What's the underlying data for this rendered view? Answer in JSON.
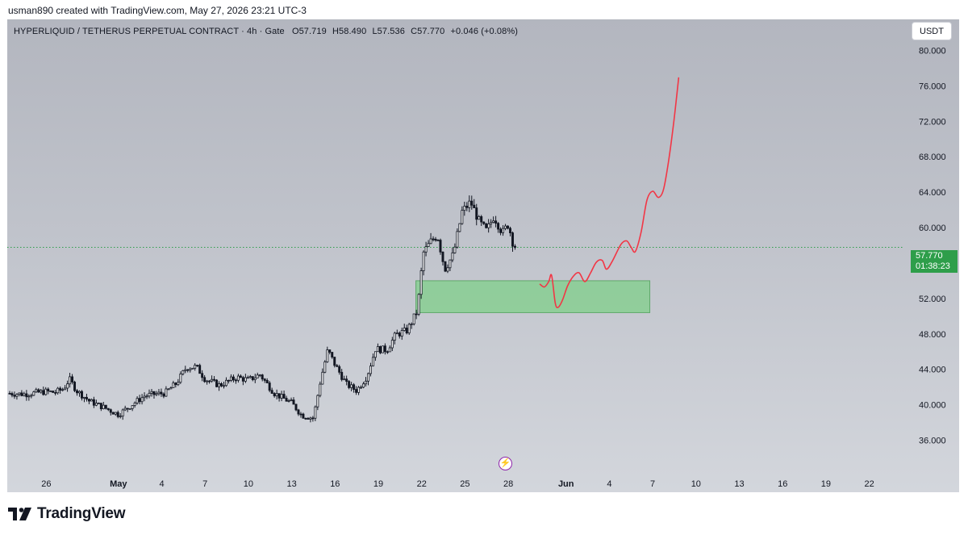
{
  "credit": "usman890 created with TradingView.com, May 27, 2026 23:21 UTC-3",
  "header": {
    "symbol": "HYPERLIQUID / TETHERUS PERPETUAL CONTRACT · 4h · Gate",
    "open": "O57.719",
    "high": "H58.490",
    "low": "L57.536",
    "close": "C57.770",
    "change": "+0.046 (+0.08%)"
  },
  "currency_button": "USDT",
  "price_tag": {
    "price": "57.770",
    "countdown": "01:38:23"
  },
  "footer": {
    "brand": "TradingView"
  },
  "colors": {
    "candle_up": "#ffffff",
    "candle_down": "#131722",
    "projection_line": "#f23645",
    "zone_fill": "#7fcf8a",
    "price_line": "#2e9e4a",
    "price_tag": "#2e9e4a",
    "flash_icon": "#8e24aa"
  },
  "chart_data": {
    "type": "candlestick",
    "interval": "4h",
    "ylim": [
      32.5,
      83.5
    ],
    "y_ticks": [
      "36.000",
      "40.000",
      "44.000",
      "48.000",
      "52.000",
      "56.000",
      "60.000",
      "64.000",
      "68.000",
      "72.000",
      "76.000",
      "80.000"
    ],
    "x_ticks": [
      {
        "label": "26",
        "day": 0
      },
      {
        "label": "May",
        "day": 5,
        "bold": true
      },
      {
        "label": "4",
        "day": 8
      },
      {
        "label": "7",
        "day": 11
      },
      {
        "label": "10",
        "day": 14
      },
      {
        "label": "13",
        "day": 17
      },
      {
        "label": "16",
        "day": 20
      },
      {
        "label": "19",
        "day": 23
      },
      {
        "label": "22",
        "day": 26
      },
      {
        "label": "25",
        "day": 29
      },
      {
        "label": "28",
        "day": 32
      },
      {
        "label": "Jun",
        "day": 36,
        "bold": true
      },
      {
        "label": "4",
        "day": 39
      },
      {
        "label": "7",
        "day": 42
      },
      {
        "label": "10",
        "day": 45
      },
      {
        "label": "13",
        "day": 48
      },
      {
        "label": "16",
        "day": 51
      },
      {
        "label": "19",
        "day": 54
      },
      {
        "label": "22",
        "day": 57
      }
    ],
    "x_range_days": [
      -2.7,
      59.2
    ],
    "price_key_points": [
      [
        -2.7,
        41.3
      ],
      [
        -1.5,
        41.2
      ],
      [
        0,
        41.5
      ],
      [
        0.6,
        41.4
      ],
      [
        1.2,
        41.8
      ],
      [
        1.6,
        42.9
      ],
      [
        2.1,
        41.6
      ],
      [
        3.0,
        40.4
      ],
      [
        4.0,
        39.7
      ],
      [
        5.0,
        38.9
      ],
      [
        6.0,
        40.1
      ],
      [
        6.8,
        41.0
      ],
      [
        7.5,
        41.2
      ],
      [
        8.2,
        41.3
      ],
      [
        9.0,
        42.4
      ],
      [
        9.7,
        44.2
      ],
      [
        10.4,
        44.3
      ],
      [
        11.0,
        42.9
      ],
      [
        12.0,
        42.2
      ],
      [
        13.2,
        43.1
      ],
      [
        14.0,
        42.8
      ],
      [
        14.8,
        43.4
      ],
      [
        15.8,
        41.3
      ],
      [
        17.0,
        40.2
      ],
      [
        17.7,
        38.8
      ],
      [
        18.5,
        38.5
      ],
      [
        19.0,
        42.8
      ],
      [
        19.5,
        46.2
      ],
      [
        20.0,
        44.5
      ],
      [
        20.8,
        42.3
      ],
      [
        21.5,
        41.6
      ],
      [
        22.2,
        43.2
      ],
      [
        22.8,
        46.3
      ],
      [
        23.6,
        46.2
      ],
      [
        24.2,
        47.9
      ],
      [
        25.0,
        48.4
      ],
      [
        25.7,
        50.6
      ],
      [
        26.1,
        57.1
      ],
      [
        26.7,
        58.6
      ],
      [
        27.1,
        59.1
      ],
      [
        27.6,
        55.3
      ],
      [
        28.2,
        57.0
      ],
      [
        28.8,
        61.8
      ],
      [
        29.4,
        62.9
      ],
      [
        30.0,
        60.6
      ],
      [
        30.5,
        59.6
      ],
      [
        31.0,
        61.3
      ],
      [
        31.6,
        59.4
      ],
      [
        32.0,
        60.4
      ],
      [
        32.3,
        58.4
      ],
      [
        32.55,
        57.77
      ]
    ],
    "projection_points": [
      [
        34.2,
        53.6
      ],
      [
        34.5,
        53.3
      ],
      [
        34.8,
        53.9
      ],
      [
        35.0,
        54.6
      ],
      [
        35.25,
        51.5
      ],
      [
        35.45,
        51.0
      ],
      [
        35.75,
        51.8
      ],
      [
        36.1,
        53.4
      ],
      [
        36.5,
        54.5
      ],
      [
        36.9,
        54.9
      ],
      [
        37.3,
        53.9
      ],
      [
        37.7,
        54.9
      ],
      [
        38.1,
        56.1
      ],
      [
        38.5,
        56.3
      ],
      [
        38.8,
        55.3
      ],
      [
        39.2,
        56.2
      ],
      [
        39.8,
        58.1
      ],
      [
        40.2,
        58.5
      ],
      [
        40.5,
        57.8
      ],
      [
        40.8,
        57.3
      ],
      [
        41.2,
        59.5
      ],
      [
        41.6,
        63.1
      ],
      [
        42.0,
        64.1
      ],
      [
        42.4,
        63.4
      ],
      [
        42.75,
        64.3
      ],
      [
        43.1,
        67.5
      ],
      [
        43.45,
        71.8
      ],
      [
        43.8,
        76.9
      ]
    ],
    "demand_zone": {
      "x_start_day": 25.6,
      "x_end_day": 41.8,
      "y_low": 50.4,
      "y_high": 54.0
    },
    "last_price": 57.77
  }
}
